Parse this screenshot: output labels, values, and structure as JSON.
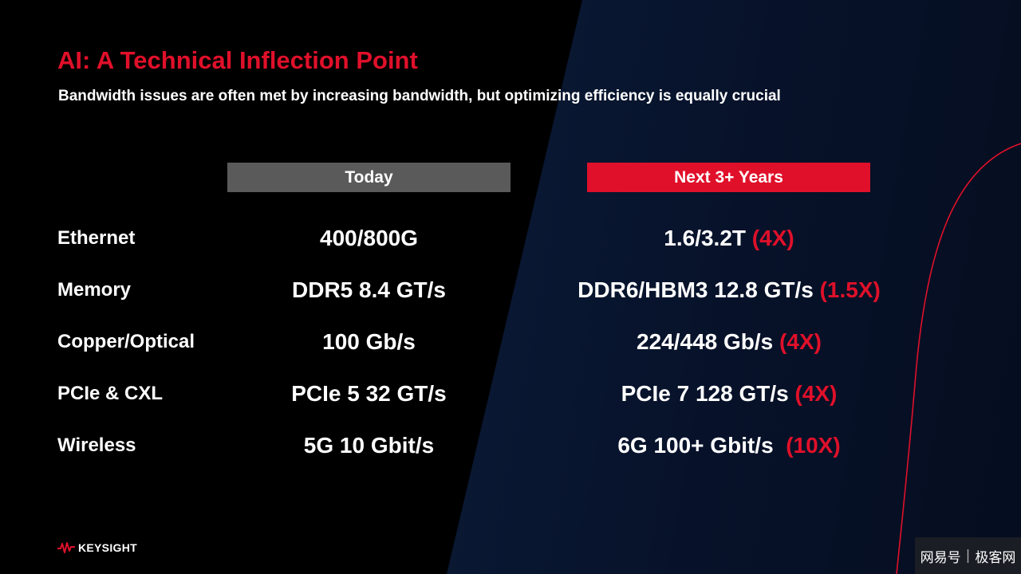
{
  "slide": {
    "title": "AI: A Technical Inflection Point",
    "subtitle": "Bandwidth issues are often met by increasing bandwidth, but optimizing efficiency is equally crucial"
  },
  "columns": {
    "today": "Today",
    "next": "Next 3+ Years"
  },
  "rows": [
    {
      "label": "Ethernet",
      "today": "400/800G",
      "next": "1.6/3.2T ",
      "multiplier": "(4X)"
    },
    {
      "label": "Memory",
      "today": "DDR5 8.4 GT/s",
      "next": "DDR6/HBM3 12.8 GT/s ",
      "multiplier": "(1.5X)"
    },
    {
      "label": "Copper/Optical",
      "today": "100 Gb/s",
      "next": "224/448 Gb/s ",
      "multiplier": "(4X)"
    },
    {
      "label": "PCIe & CXL",
      "today": "PCIe 5 32 GT/s",
      "next": "PCIe 7 128 GT/s ",
      "multiplier": "(4X)"
    },
    {
      "label": "Wireless",
      "today": "5G 10 Gbit/s",
      "next": "6G 100+ Gbit/s  ",
      "multiplier": "(10X)"
    }
  ],
  "logo": {
    "text": "KEYSIGHT",
    "icon": "keysight-wave-icon"
  },
  "watermark": {
    "left": "网易号",
    "right": "极客网"
  },
  "colors": {
    "accent_red": "#e0102a",
    "today_header_gray": "#5a5a5a",
    "background": "#000000",
    "panel_navy": "#0b1a36"
  }
}
